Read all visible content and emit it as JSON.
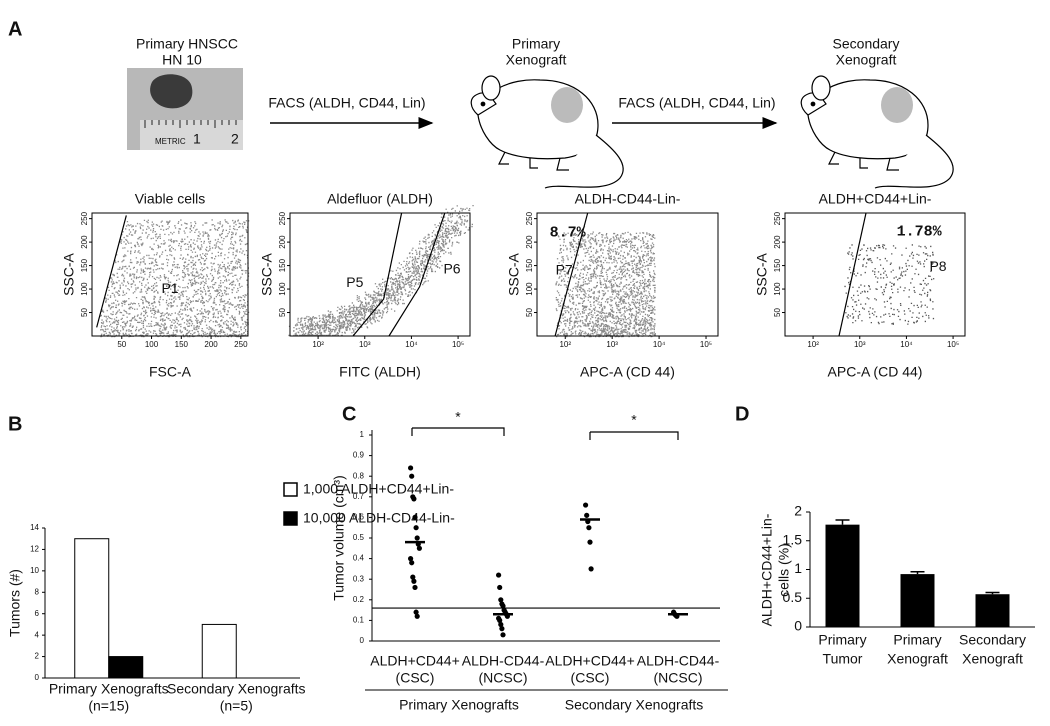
{
  "panel_a": {
    "label": "A",
    "tumor_title": [
      "Primary HNSCC",
      "HN 10"
    ],
    "ruler_text": [
      "METRIC",
      "1",
      "2"
    ],
    "arrows": [
      "FACS (ALDH, CD44, Lin)",
      "FACS (ALDH, CD44, Lin)"
    ],
    "mice": [
      [
        "Primary",
        "Xenograft"
      ],
      [
        "Secondary",
        "Xenograft"
      ]
    ],
    "plots": [
      {
        "title": "Viable cells",
        "xlabel": "FSC-A",
        "ylabel": "SSC-A",
        "gates": [
          "P1"
        ],
        "xlim": [
          0,
          262
        ],
        "xticks": [
          50,
          100,
          150,
          200,
          250
        ],
        "ylim": [
          0,
          262
        ],
        "yticks": [
          50,
          100,
          150,
          200,
          250
        ]
      },
      {
        "title": "Aldefluor (ALDH)",
        "xlabel": "FITC (ALDH)",
        "ylabel": "SSC-A",
        "gates": [
          "P5",
          "P6"
        ],
        "xscale": "log",
        "xlim": [
          25,
          180000
        ],
        "xticks": [
          {
            "value": 100,
            "label": "10²"
          },
          {
            "value": 1000,
            "label": "10³"
          },
          {
            "value": 10000,
            "label": "10⁴"
          },
          {
            "value": 100000,
            "label": "10⁵"
          }
        ],
        "ylim": [
          0,
          262
        ],
        "yticks": [
          50,
          100,
          150,
          200,
          250
        ]
      },
      {
        "title": "ALDH-CD44-Lin-",
        "xlabel": "APC-A (CD 44)",
        "ylabel": "SSC-A",
        "gates": [
          "P7"
        ],
        "percent": "8.7%",
        "xscale": "log",
        "xlim": [
          25,
          180000
        ],
        "xticks": [
          {
            "value": 100,
            "label": "10²"
          },
          {
            "value": 1000,
            "label": "10³"
          },
          {
            "value": 10000,
            "label": "10⁴"
          },
          {
            "value": 100000,
            "label": "10⁵"
          }
        ],
        "ylim": [
          0,
          262
        ],
        "yticks": [
          50,
          100,
          150,
          200,
          250
        ]
      },
      {
        "title": "ALDH+CD44+Lin-",
        "xlabel": "APC-A (CD 44)",
        "ylabel": "SSC-A",
        "gates": [
          "P8"
        ],
        "percent": "1.78%",
        "xscale": "log",
        "xlim": [
          25,
          180000
        ],
        "xticks": [
          {
            "value": 100,
            "label": "10²"
          },
          {
            "value": 1000,
            "label": "10³"
          },
          {
            "value": 10000,
            "label": "10⁴"
          },
          {
            "value": 100000,
            "label": "10⁵"
          }
        ],
        "ylim": [
          0,
          262
        ],
        "yticks": [
          50,
          100,
          150,
          200,
          250
        ]
      }
    ]
  },
  "chart_data": [
    {
      "type": "bar",
      "panel": "B",
      "ylabel": "Tumors (#)",
      "categories": [
        [
          "Primary Xenografts",
          "(n=15)"
        ],
        [
          "Secondary Xenografts",
          "(n=5)"
        ]
      ],
      "series": [
        {
          "name": "1,000 ALDH+CD44+Lin-",
          "color": "#ffffff",
          "values": [
            13,
            5
          ]
        },
        {
          "name": "10,000 ALDH-CD44-Lin-",
          "color": "#000000",
          "values": [
            2,
            0
          ]
        }
      ],
      "ylim": [
        0,
        14
      ],
      "yticks": [
        0,
        2,
        4,
        6,
        8,
        10,
        12,
        14
      ]
    },
    {
      "type": "dot",
      "panel": "C",
      "ylabel": "Tumor volume (cm³)",
      "categories": [
        [
          "ALDH+CD44+",
          "(CSC)"
        ],
        [
          "ALDH-CD44-",
          "(NCSC)"
        ],
        [
          "ALDH+CD44+",
          "(CSC)"
        ],
        [
          "ALDH-CD44-",
          "(NCSC)"
        ]
      ],
      "groups": [
        "Primary Xenografts",
        "Secondary Xenografts"
      ],
      "points": [
        [
          0.84,
          0.8,
          0.7,
          0.69,
          0.6,
          0.55,
          0.5,
          0.47,
          0.45,
          0.4,
          0.38,
          0.31,
          0.29,
          0.26,
          0.14,
          0.12
        ],
        [
          0.32,
          0.26,
          0.2,
          0.18,
          0.17,
          0.15,
          0.14,
          0.13,
          0.12,
          0.11,
          0.1,
          0.08,
          0.06,
          0.03
        ],
        [
          0.66,
          0.61,
          0.58,
          0.55,
          0.48,
          0.35
        ],
        [
          0.14,
          0.13,
          0.125,
          0.12
        ]
      ],
      "medians": [
        0.48,
        0.13,
        0.59,
        0.13
      ],
      "threshold": 0.16,
      "significance": [
        "*",
        "*"
      ],
      "ylim": [
        0,
        1
      ],
      "yticks": [
        0,
        0.1,
        0.2,
        0.3,
        0.4,
        0.5,
        0.6,
        0.7,
        0.8,
        0.9,
        1
      ]
    },
    {
      "type": "bar",
      "panel": "D",
      "ylabel": [
        "ALDH+CD44+Lin-",
        "cells (%)"
      ],
      "categories": [
        [
          "Primary",
          "Tumor"
        ],
        [
          "Primary",
          "Xenograft"
        ],
        [
          "Secondary",
          "Xenograft"
        ]
      ],
      "series": [
        {
          "color": "#000000",
          "values": [
            1.78,
            0.92,
            0.57
          ],
          "errors": [
            0.08,
            0.04,
            0.03
          ]
        }
      ],
      "ylim": [
        0,
        2
      ],
      "yticks": [
        0,
        0.5,
        1,
        1.5,
        2
      ]
    }
  ]
}
